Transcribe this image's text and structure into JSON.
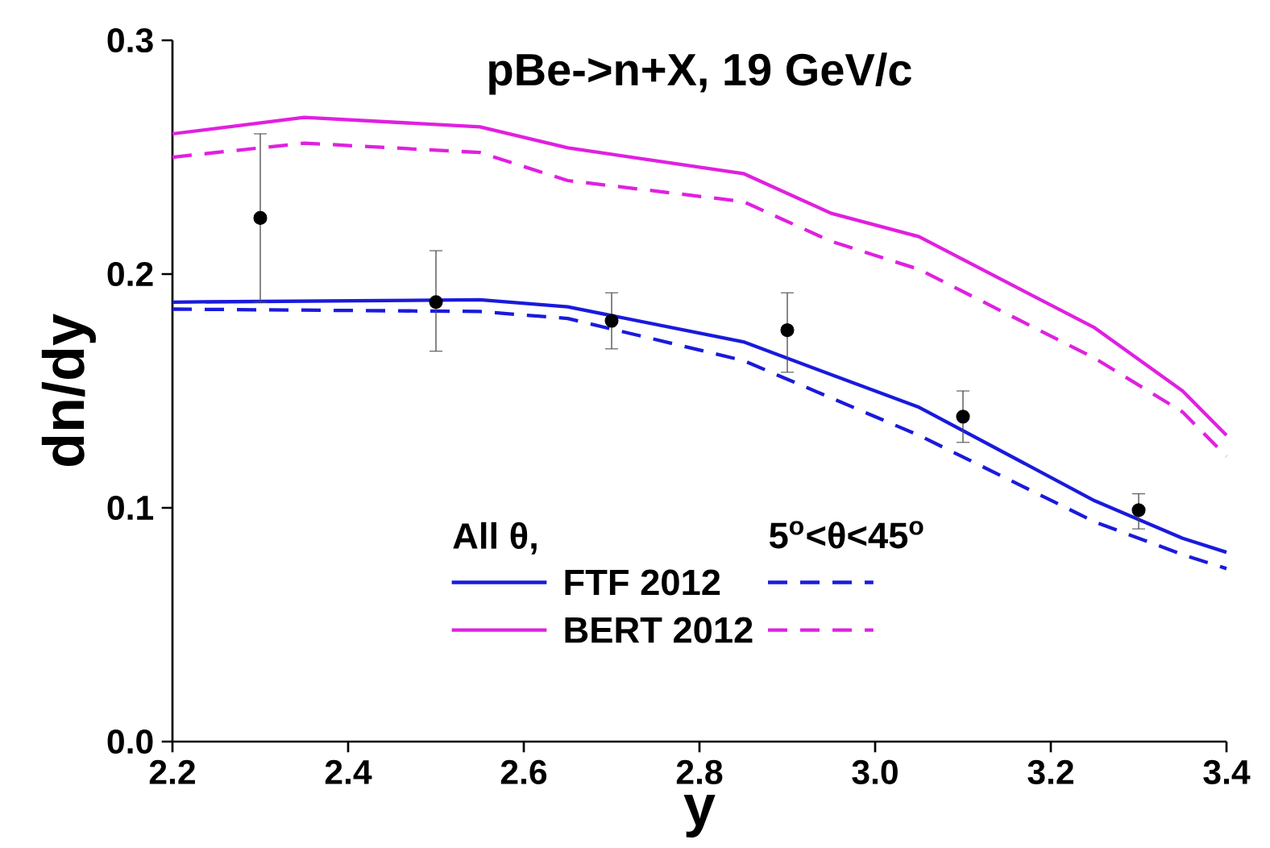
{
  "chart_data": {
    "type": "line",
    "title": "pBe->n+X, 19 GeV/c",
    "xlabel": "y",
    "ylabel": "dn/dy",
    "legend_title": "All θ,",
    "annotations": [
      "5$^{o}$<θ<45$^{o}$"
    ],
    "legend": "bottom",
    "grid": false,
    "xlim": [
      2.2,
      3.4
    ],
    "ylim": [
      0,
      0.3
    ],
    "xticks": [
      2.2,
      2.4,
      2.6,
      2.8,
      {
        "value": 3.0,
        "label": "3.0"
      },
      3.2,
      3.4
    ],
    "yticks": [
      {
        "value": 0,
        "label": "0.0"
      },
      0.1,
      0.2,
      0.3
    ],
    "series": [
      {
        "name": "FTF 2012",
        "color": "#1a1adc",
        "line_style": "solid",
        "x": [
          2.2,
          2.55,
          2.65,
          2.85,
          3.05,
          3.25,
          3.35,
          3.4
        ],
        "values": [
          0.188,
          0.189,
          0.186,
          0.171,
          0.143,
          0.103,
          0.087,
          0.081
        ]
      },
      {
        "color": "#1a1adc",
        "line_style": "dashed",
        "x": [
          2.2,
          2.55,
          2.65,
          2.85,
          3.05,
          3.25,
          3.35,
          3.4
        ],
        "values": [
          0.185,
          0.184,
          0.181,
          0.163,
          0.131,
          0.094,
          0.08,
          0.074
        ]
      },
      {
        "name": "BERT 2012",
        "color": "#e020e0",
        "line_style": "solid",
        "x": [
          2.2,
          2.35,
          2.55,
          2.65,
          2.85,
          2.95,
          3.05,
          3.25,
          3.35,
          3.4
        ],
        "values": [
          0.26,
          0.267,
          0.263,
          0.254,
          0.243,
          0.226,
          0.216,
          0.177,
          0.15,
          0.131
        ]
      },
      {
        "color": "#e020e0",
        "line_style": "dashed",
        "x": [
          2.2,
          2.35,
          2.55,
          2.65,
          2.85,
          2.95,
          3.05,
          3.25,
          3.35,
          3.4
        ],
        "values": [
          0.25,
          0.256,
          0.252,
          0.24,
          0.231,
          0.214,
          0.202,
          0.164,
          0.141,
          0.122
        ]
      },
      {
        "type": "scatter",
        "color": "#000000",
        "marker": "circle",
        "x": [
          2.3,
          2.5,
          2.7,
          2.9,
          3.1,
          3.3
        ],
        "values": [
          0.224,
          0.188,
          0.18,
          0.176,
          0.139,
          0.099
        ],
        "errors": [
          [
            0.188,
            0.26
          ],
          [
            0.167,
            0.21
          ],
          [
            0.168,
            0.192
          ],
          [
            0.158,
            0.192
          ],
          [
            0.128,
            0.15
          ],
          [
            0.091,
            0.106
          ]
        ]
      }
    ]
  }
}
